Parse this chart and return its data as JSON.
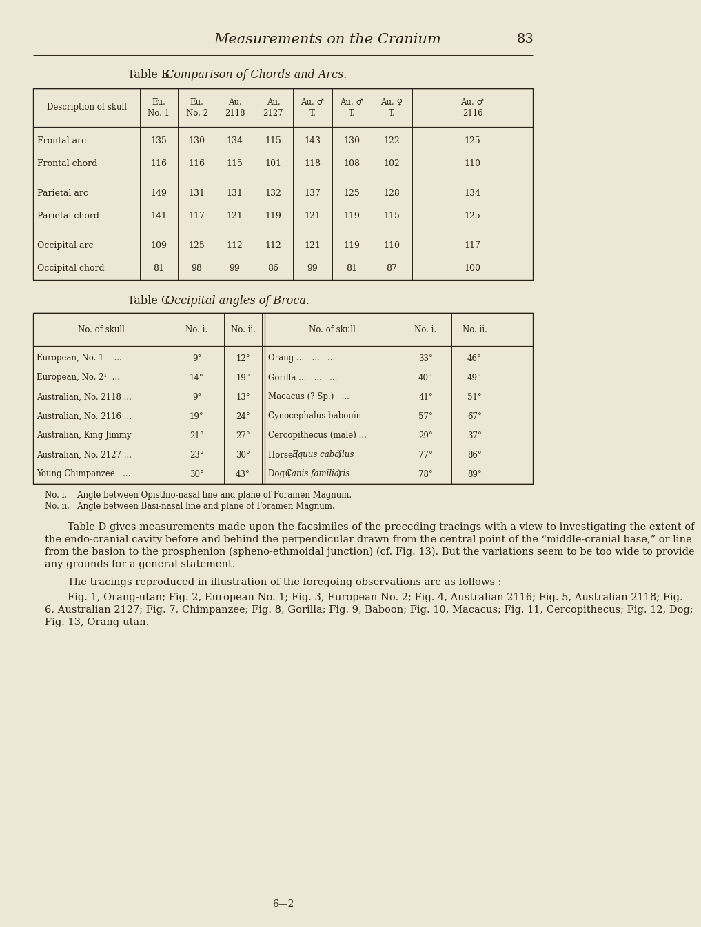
{
  "bg_color": "#ede8d5",
  "text_color": "#2a2218",
  "page_title": "Measurements on the Cranium",
  "page_number": "83",
  "table_b_title": "Table B.",
  "table_b_subtitle": "Comparison of Chords and Arcs.",
  "table_b_col_headers": [
    "Description of skull",
    "Eu.\nNo. 1",
    "Eu.\nNo. 2",
    "Au.\n2118",
    "Au.\n2127",
    "Au. ♂\nT.",
    "Au. ♂\nT.",
    "Au. ♀\nT.",
    "Au. ♂\n2116"
  ],
  "table_b_rows": [
    [
      "Frontal arc",
      "135",
      "130",
      "134",
      "115",
      "143",
      "130",
      "122",
      "125"
    ],
    [
      "Frontal chord",
      "116",
      "116",
      "115",
      "101",
      "118",
      "108",
      "102",
      "110"
    ],
    [
      "Parietal arc",
      "149",
      "131",
      "131",
      "132",
      "137",
      "125",
      "128",
      "134"
    ],
    [
      "Parietal chord",
      "141",
      "117",
      "121",
      "119",
      "121",
      "119",
      "115",
      "125"
    ],
    [
      "Occipital arc",
      "109",
      "125",
      "112",
      "112",
      "121",
      "119",
      "110",
      "117"
    ],
    [
      "Occipital chord",
      "81",
      "98",
      "99",
      "86",
      "99",
      "81",
      "87",
      "100"
    ]
  ],
  "table_c_title": "Table C.",
  "table_c_subtitle": "Occipital angles of Broca.",
  "table_c_left": [
    [
      "European, No. 1    ...",
      "9°",
      "12°"
    ],
    [
      "European, No. 2¹  ...",
      "14°",
      "19°"
    ],
    [
      "Australian, No. 2118 ...",
      "9°",
      "13°"
    ],
    [
      "Australian, No. 2116 ...",
      "19°",
      "24°"
    ],
    [
      "Australian, King Jimmy",
      "21°",
      "27°"
    ],
    [
      "Australian, No. 2127 ...",
      "23°",
      "30°"
    ],
    [
      "Young Chimpanzee   ...",
      "30°",
      "43°"
    ]
  ],
  "table_c_right": [
    [
      "Orang ...   ...   ...",
      "33°",
      "46°"
    ],
    [
      "Gorilla ...   ...   ...",
      "40°",
      "49°"
    ],
    [
      "Macacus (? Sp.)   ...",
      "41°",
      "51°"
    ],
    [
      "Cynocephalus babouin",
      "57°",
      "67°"
    ],
    [
      "Cercopithecus (male) ...",
      "29°",
      "37°"
    ],
    [
      "Horse (|Equus caballus|)",
      "77°",
      "86°"
    ],
    [
      "Dog (|Canis familiaris|)",
      "78°",
      "89°"
    ]
  ],
  "note_i": "No. i.    Angle between Opisthio-nasal line and plane of Foramen Magnum.",
  "note_ii": "No. ii.   Angle between Basi-nasal line and plane of Foramen Magnum.",
  "para1": "Table D gives measurements made upon the facsimiles of the preceding tracings with a view to investigating the extent of the endo-cranial cavity before and behind the perpendicular drawn from the central point of the “middle-cranial base,” or line from the basion to the prosphenion (spheno-ethmoidal junction) (cf. Fig. 13).  But the variations seem to be too wide to provide any grounds for a general statement.",
  "para2": "The tracings reproduced in illustration of the foregoing observations are as follows :",
  "para3_indent": "Fig. 1, Orang-utan; Fig. 2, European No. 1; Fig. 3, European No. 2; Fig. 4, Australian 2116; Fig. 5, Australian 2118; Fig. 6, Australian 2127; Fig. 7, Chimpanzee; Fig. 8, Gorilla; Fig. 9, Baboon; Fig. 10, Macacus; Fig. 11, Cercopithecus; Fig. 12, Dog; Fig. 13, Orang-utan.",
  "footer": "6—2"
}
